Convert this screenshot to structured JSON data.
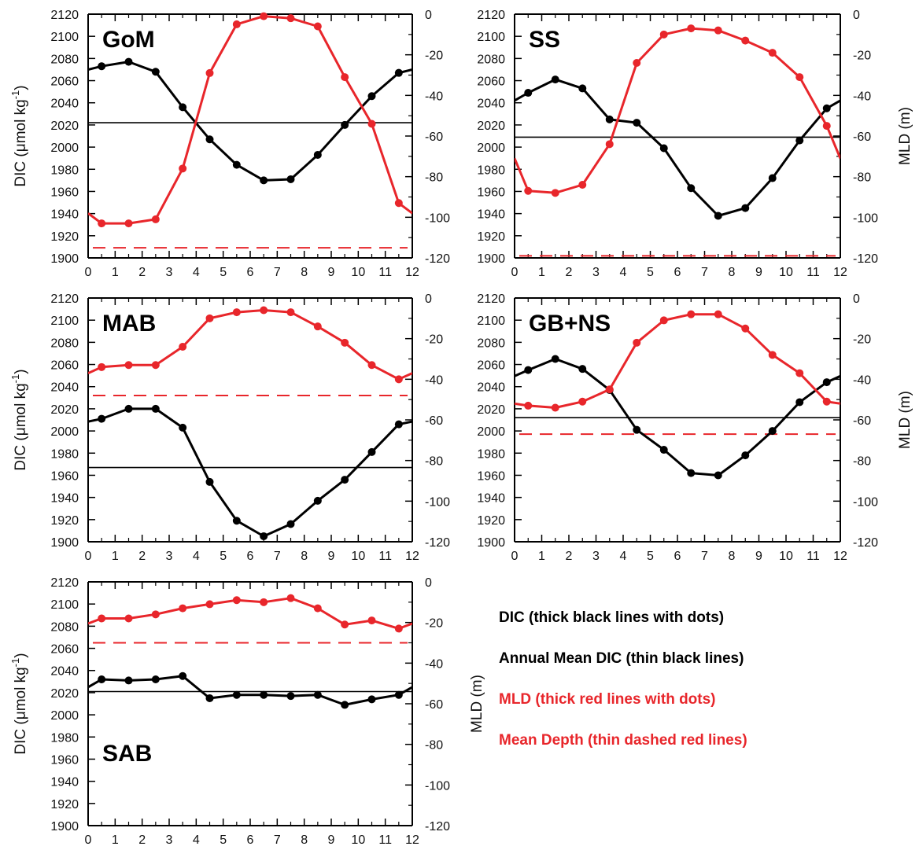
{
  "colors": {
    "dic": "#000000",
    "mld": "#e8262b",
    "axis": "#000000"
  },
  "axes": {
    "dic_label": "DIC (μmol kg",
    "dic_label_sup": "-1",
    "dic_label_end": ")",
    "mld_label": "MLD (m)",
    "dic_ylim": [
      1900,
      2120
    ],
    "dic_ticks": [
      "1900",
      "1920",
      "1940",
      "1960",
      "1980",
      "2000",
      "2020",
      "2040",
      "2060",
      "2080",
      "2100",
      "2120"
    ],
    "mld_ylim": [
      -120,
      0
    ],
    "mld_ticks": [
      "-120",
      "-100",
      "-80",
      "-60",
      "-40",
      "-20",
      "0"
    ],
    "x_ticks": [
      "0",
      "1",
      "2",
      "3",
      "4",
      "5",
      "6",
      "7",
      "8",
      "9",
      "10",
      "11",
      "12"
    ],
    "xlim": [
      0,
      12
    ]
  },
  "legend": {
    "dic": "DIC (thick black lines with dots)",
    "mean_dic": "Annual Mean DIC (thin black lines)",
    "mld": "MLD (thick red lines with dots)",
    "mean_depth": "Mean Depth (thin dashed red lines)"
  },
  "chart_data": [
    {
      "type": "line",
      "region": "GoM",
      "x": [
        0.5,
        1.5,
        2.5,
        3.5,
        4.5,
        5.5,
        6.5,
        7.5,
        8.5,
        9.5,
        10.5,
        11.5
      ],
      "series": [
        {
          "name": "DIC",
          "axis": "left",
          "values": [
            2073,
            2077,
            2068,
            2036,
            2007,
            1984,
            1970,
            1971,
            1993,
            2020,
            2046,
            2067
          ]
        },
        {
          "name": "MLD",
          "axis": "right",
          "values": [
            -103,
            -103,
            -101,
            -76,
            -29,
            -5,
            -1,
            -2,
            -6,
            -31,
            -54,
            -93
          ]
        }
      ],
      "annual_mean_dic": 2022,
      "mean_depth": -115,
      "left_y_label": true,
      "right_y_label": false
    },
    {
      "type": "line",
      "region": "SS",
      "x": [
        0.5,
        1.5,
        2.5,
        3.5,
        4.5,
        5.5,
        6.5,
        7.5,
        8.5,
        9.5,
        10.5,
        11.5
      ],
      "series": [
        {
          "name": "DIC",
          "axis": "left",
          "values": [
            2049,
            2061,
            2053,
            2025,
            2022,
            1999,
            1963,
            1938,
            1945,
            1972,
            2006,
            2035
          ]
        },
        {
          "name": "MLD",
          "axis": "right",
          "values": [
            -87,
            -88,
            -84,
            -64,
            -24,
            -10,
            -7,
            -8,
            -13,
            -19,
            -31,
            -55
          ]
        }
      ],
      "annual_mean_dic": 2009,
      "mean_depth": -119,
      "left_y_label": false,
      "right_y_label": true
    },
    {
      "type": "line",
      "region": "MAB",
      "x": [
        0.5,
        1.5,
        2.5,
        3.5,
        4.5,
        5.5,
        6.5,
        7.5,
        8.5,
        9.5,
        10.5,
        11.5
      ],
      "series": [
        {
          "name": "DIC",
          "axis": "left",
          "values": [
            2011,
            2020,
            2020,
            2003,
            1954,
            1919,
            1905,
            1916,
            1937,
            1956,
            1981,
            2006
          ]
        },
        {
          "name": "MLD",
          "axis": "right",
          "values": [
            -34,
            -33,
            -33,
            -24,
            -10,
            -7,
            -6,
            -7,
            -14,
            -22,
            -33,
            -40
          ]
        }
      ],
      "annual_mean_dic": 1967,
      "mean_depth": -48,
      "left_y_label": true,
      "right_y_label": false
    },
    {
      "type": "line",
      "region": "GB+NS",
      "x": [
        0.5,
        1.5,
        2.5,
        3.5,
        4.5,
        5.5,
        6.5,
        7.5,
        8.5,
        9.5,
        10.5,
        11.5
      ],
      "series": [
        {
          "name": "DIC",
          "axis": "left",
          "values": [
            2055,
            2065,
            2056,
            2037,
            2001,
            1983,
            1962,
            1960,
            1978,
            2000,
            2026,
            2044
          ]
        },
        {
          "name": "MLD",
          "axis": "right",
          "values": [
            -53,
            -54,
            -51,
            -45,
            -22,
            -11,
            -8,
            -8,
            -15,
            -28,
            -37,
            -51
          ]
        }
      ],
      "annual_mean_dic": 2012,
      "mean_depth": -67,
      "left_y_label": false,
      "right_y_label": true
    },
    {
      "type": "line",
      "region": "SAB",
      "x": [
        0.5,
        1.5,
        2.5,
        3.5,
        4.5,
        5.5,
        6.5,
        7.5,
        8.5,
        9.5,
        10.5,
        11.5
      ],
      "series": [
        {
          "name": "DIC",
          "axis": "left",
          "values": [
            2032,
            2031,
            2032,
            2035,
            2015,
            2018,
            2018,
            2017,
            2018,
            2009,
            2014,
            2018
          ]
        },
        {
          "name": "MLD",
          "axis": "right",
          "values": [
            -18,
            -18,
            -16,
            -13,
            -11,
            -9,
            -10,
            -8,
            -13,
            -21,
            -19,
            -23
          ]
        }
      ],
      "annual_mean_dic": 2021,
      "mean_depth": -30,
      "left_y_label": true,
      "right_y_label": true
    }
  ]
}
